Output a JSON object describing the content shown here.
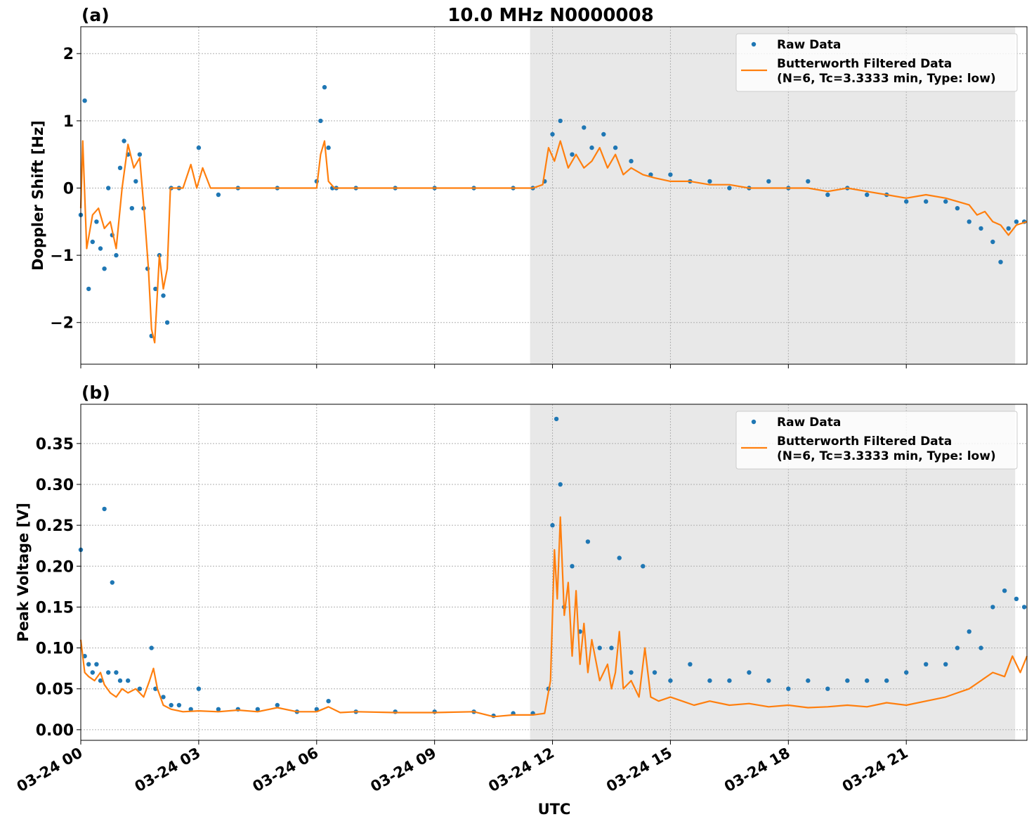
{
  "figure": {
    "title": "10.0 MHz N0000008",
    "xlabel": "UTC",
    "x_tick_labels": [
      "03-24 00",
      "03-24 03",
      "03-24 06",
      "03-24 09",
      "03-24 12",
      "03-24 15",
      "03-24 18",
      "03-24 21"
    ],
    "legend": {
      "raw_label": "Raw Data",
      "filtered_label_line1": "Butterworth Filtered Data",
      "filtered_label_line2": "(N=6, Tc=3.3333 min, Type: low)"
    },
    "colors": {
      "raw": "#1f77b4",
      "filtered": "#ff7f0e",
      "shade": "#e8e8e8",
      "grid": "#b0b0b0"
    }
  },
  "chart_data": [
    {
      "type": "scatter",
      "panel": "(a)",
      "title": "10.0 MHz N0000008",
      "ylabel": "Doppler Shift [Hz]",
      "xlabel": "",
      "x_unit": "hours UTC on 03-24",
      "xlim": [
        0,
        24.07
      ],
      "ylim": [
        -2.62,
        2.4
      ],
      "y_ticks": [
        2,
        1,
        0,
        -1,
        -2
      ],
      "y_tick_labels": [
        "2",
        "1",
        "0",
        "−1",
        "−2"
      ],
      "shaded_span": [
        11.43,
        23.77
      ],
      "grid": true,
      "legend_position": "top-right",
      "series": [
        {
          "name": "Raw Data",
          "style": "points",
          "x": [
            0.0,
            0.1,
            0.2,
            0.3,
            0.4,
            0.5,
            0.6,
            0.7,
            0.8,
            0.9,
            1.0,
            1.1,
            1.2,
            1.3,
            1.4,
            1.5,
            1.6,
            1.7,
            1.8,
            1.9,
            2.0,
            2.1,
            2.2,
            2.3,
            2.5,
            3.0,
            3.5,
            4.0,
            5.0,
            6.0,
            6.1,
            6.2,
            6.3,
            6.4,
            6.5,
            7.0,
            8.0,
            9.0,
            10.0,
            11.0,
            11.5,
            11.8,
            12.0,
            12.2,
            12.5,
            12.8,
            13.0,
            13.3,
            13.6,
            14.0,
            14.5,
            15.0,
            15.5,
            16.0,
            16.5,
            17.0,
            17.5,
            18.0,
            18.5,
            19.0,
            19.5,
            20.0,
            20.5,
            21.0,
            21.5,
            22.0,
            22.3,
            22.6,
            22.9,
            23.2,
            23.4,
            23.6,
            23.8,
            24.0
          ],
          "y": [
            -0.4,
            1.3,
            -1.5,
            -0.8,
            -0.5,
            -0.9,
            -1.2,
            0.0,
            -0.7,
            -1.0,
            0.3,
            0.7,
            0.5,
            -0.3,
            0.1,
            0.5,
            -0.3,
            -1.2,
            -2.2,
            -1.5,
            -1.0,
            -1.6,
            -2.0,
            0.0,
            0.0,
            0.6,
            -0.1,
            0.0,
            0.0,
            0.1,
            1.0,
            1.5,
            0.6,
            0.0,
            0.0,
            0.0,
            0.0,
            0.0,
            0.0,
            0.0,
            0.0,
            0.1,
            0.8,
            1.0,
            0.5,
            0.9,
            0.6,
            0.8,
            0.6,
            0.4,
            0.2,
            0.2,
            0.1,
            0.1,
            0.0,
            0.0,
            0.1,
            0.0,
            0.1,
            -0.1,
            0.0,
            -0.1,
            -0.1,
            -0.2,
            -0.2,
            -0.2,
            -0.3,
            -0.5,
            -0.6,
            -0.8,
            -1.1,
            -0.6,
            -0.5,
            -0.5
          ]
        },
        {
          "name": "Butterworth Filtered Data\n(N=6, Tc=3.3333 min, Type: low)",
          "style": "line",
          "x": [
            0.0,
            0.05,
            0.15,
            0.3,
            0.45,
            0.6,
            0.75,
            0.9,
            1.05,
            1.2,
            1.35,
            1.5,
            1.62,
            1.72,
            1.8,
            1.88,
            2.0,
            2.1,
            2.2,
            2.28,
            2.35,
            2.6,
            2.8,
            2.95,
            3.1,
            3.3,
            4.0,
            5.0,
            6.0,
            6.1,
            6.2,
            6.3,
            6.45,
            7.0,
            8.0,
            9.0,
            10.0,
            11.0,
            11.5,
            11.75,
            11.9,
            12.05,
            12.2,
            12.4,
            12.6,
            12.8,
            13.0,
            13.2,
            13.4,
            13.6,
            13.8,
            14.0,
            14.3,
            14.6,
            15.0,
            15.5,
            16.0,
            16.5,
            17.0,
            17.5,
            18.0,
            18.5,
            19.0,
            19.5,
            20.0,
            20.5,
            21.0,
            21.5,
            22.0,
            22.3,
            22.6,
            22.8,
            23.0,
            23.2,
            23.4,
            23.6,
            23.8,
            24.07
          ],
          "y": [
            -0.3,
            0.7,
            -0.9,
            -0.4,
            -0.3,
            -0.6,
            -0.5,
            -0.9,
            0.0,
            0.65,
            0.3,
            0.45,
            -0.4,
            -1.2,
            -2.1,
            -2.3,
            -1.0,
            -1.5,
            -1.2,
            0.0,
            0.0,
            0.0,
            0.35,
            0.0,
            0.3,
            0.0,
            0.0,
            0.0,
            0.0,
            0.5,
            0.7,
            0.1,
            0.0,
            0.0,
            0.0,
            0.0,
            0.0,
            0.0,
            0.0,
            0.05,
            0.6,
            0.4,
            0.7,
            0.3,
            0.5,
            0.3,
            0.4,
            0.6,
            0.3,
            0.5,
            0.2,
            0.3,
            0.2,
            0.15,
            0.1,
            0.1,
            0.05,
            0.05,
            0.0,
            0.0,
            0.0,
            0.0,
            -0.05,
            0.0,
            -0.05,
            -0.1,
            -0.15,
            -0.1,
            -0.15,
            -0.2,
            -0.25,
            -0.4,
            -0.35,
            -0.5,
            -0.55,
            -0.7,
            -0.55,
            -0.5
          ]
        }
      ]
    },
    {
      "type": "scatter",
      "panel": "(b)",
      "title": "",
      "ylabel": "Peak Voltage [V]",
      "xlabel": "UTC",
      "x_unit": "hours UTC on 03-24",
      "xlim": [
        0,
        24.07
      ],
      "ylim": [
        -0.013,
        0.398
      ],
      "y_ticks": [
        0.35,
        0.3,
        0.25,
        0.2,
        0.15,
        0.1,
        0.05,
        0.0
      ],
      "y_tick_labels": [
        "0.35",
        "0.30",
        "0.25",
        "0.20",
        "0.15",
        "0.10",
        "0.05",
        "0.00"
      ],
      "shaded_span": [
        11.43,
        23.77
      ],
      "grid": true,
      "legend_position": "top-right",
      "series": [
        {
          "name": "Raw Data",
          "style": "points",
          "x": [
            0.0,
            0.1,
            0.2,
            0.3,
            0.4,
            0.5,
            0.6,
            0.7,
            0.8,
            0.9,
            1.0,
            1.2,
            1.5,
            1.8,
            1.9,
            2.1,
            2.3,
            2.5,
            2.8,
            3.0,
            3.5,
            4.0,
            4.5,
            5.0,
            5.5,
            6.0,
            6.3,
            7.0,
            8.0,
            9.0,
            10.0,
            10.5,
            11.0,
            11.5,
            11.9,
            12.0,
            12.1,
            12.2,
            12.3,
            12.5,
            12.7,
            12.9,
            13.2,
            13.5,
            13.7,
            14.0,
            14.3,
            14.6,
            15.0,
            15.5,
            16.0,
            16.5,
            17.0,
            17.5,
            18.0,
            18.5,
            19.0,
            19.5,
            20.0,
            20.5,
            21.0,
            21.5,
            22.0,
            22.3,
            22.6,
            22.9,
            23.2,
            23.5,
            23.8,
            24.0
          ],
          "y": [
            0.22,
            0.09,
            0.08,
            0.07,
            0.08,
            0.06,
            0.27,
            0.07,
            0.18,
            0.07,
            0.06,
            0.06,
            0.05,
            0.1,
            0.05,
            0.04,
            0.03,
            0.03,
            0.025,
            0.05,
            0.025,
            0.025,
            0.025,
            0.03,
            0.022,
            0.025,
            0.035,
            0.022,
            0.022,
            0.022,
            0.022,
            0.017,
            0.02,
            0.02,
            0.05,
            0.25,
            0.38,
            0.3,
            0.15,
            0.2,
            0.12,
            0.23,
            0.1,
            0.1,
            0.21,
            0.07,
            0.2,
            0.07,
            0.06,
            0.08,
            0.06,
            0.06,
            0.07,
            0.06,
            0.05,
            0.06,
            0.05,
            0.06,
            0.06,
            0.06,
            0.07,
            0.08,
            0.08,
            0.1,
            0.12,
            0.1,
            0.15,
            0.17,
            0.16,
            0.15
          ]
        },
        {
          "name": "Butterworth Filtered Data\n(N=6, Tc=3.3333 min, Type: low)",
          "style": "line",
          "x": [
            0.0,
            0.1,
            0.2,
            0.35,
            0.5,
            0.6,
            0.75,
            0.9,
            1.05,
            1.2,
            1.4,
            1.6,
            1.75,
            1.85,
            1.95,
            2.1,
            2.3,
            2.6,
            3.0,
            3.5,
            4.0,
            4.5,
            5.0,
            5.5,
            6.0,
            6.3,
            6.6,
            7.0,
            8.0,
            9.0,
            10.0,
            10.5,
            11.0,
            11.5,
            11.8,
            11.95,
            12.05,
            12.12,
            12.2,
            12.3,
            12.4,
            12.5,
            12.6,
            12.7,
            12.8,
            12.9,
            13.0,
            13.2,
            13.4,
            13.5,
            13.6,
            13.7,
            13.8,
            14.0,
            14.2,
            14.35,
            14.5,
            14.7,
            15.0,
            15.3,
            15.6,
            16.0,
            16.5,
            17.0,
            17.5,
            18.0,
            18.5,
            19.0,
            19.5,
            20.0,
            20.5,
            21.0,
            21.5,
            22.0,
            22.3,
            22.6,
            22.9,
            23.2,
            23.5,
            23.7,
            23.9,
            24.07
          ],
          "y": [
            0.11,
            0.07,
            0.065,
            0.06,
            0.07,
            0.055,
            0.045,
            0.04,
            0.05,
            0.045,
            0.05,
            0.04,
            0.06,
            0.075,
            0.05,
            0.03,
            0.025,
            0.022,
            0.023,
            0.022,
            0.024,
            0.022,
            0.027,
            0.022,
            0.022,
            0.028,
            0.021,
            0.022,
            0.021,
            0.021,
            0.022,
            0.016,
            0.018,
            0.018,
            0.02,
            0.06,
            0.22,
            0.16,
            0.26,
            0.14,
            0.18,
            0.09,
            0.17,
            0.08,
            0.13,
            0.07,
            0.11,
            0.06,
            0.08,
            0.05,
            0.07,
            0.12,
            0.05,
            0.06,
            0.04,
            0.1,
            0.04,
            0.035,
            0.04,
            0.035,
            0.03,
            0.035,
            0.03,
            0.032,
            0.028,
            0.03,
            0.027,
            0.028,
            0.03,
            0.028,
            0.033,
            0.03,
            0.035,
            0.04,
            0.045,
            0.05,
            0.06,
            0.07,
            0.065,
            0.09,
            0.07,
            0.09
          ]
        }
      ]
    }
  ]
}
